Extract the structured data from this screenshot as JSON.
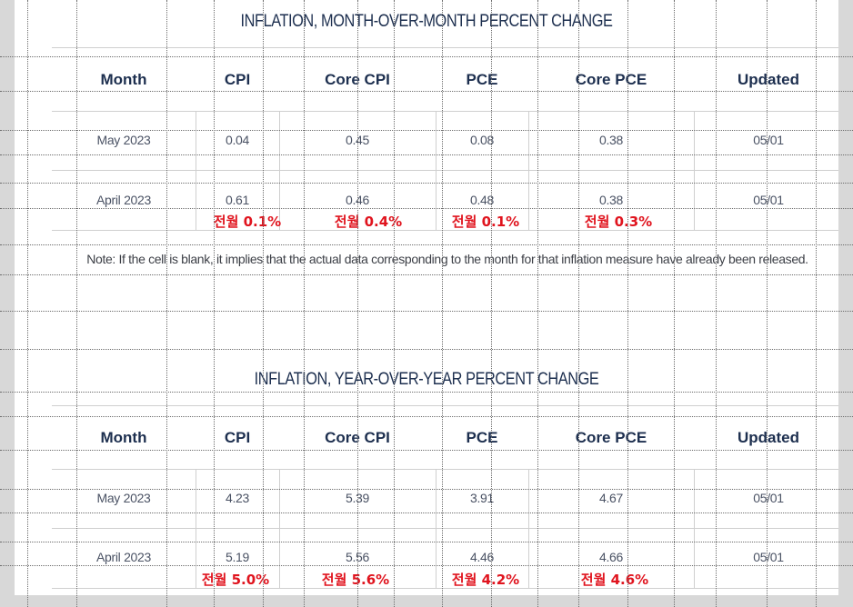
{
  "mom": {
    "title": "INFLATION, MONTH-OVER-MONTH PERCENT CHANGE",
    "headers": [
      "Month",
      "CPI",
      "Core CPI",
      "PCE",
      "Core PCE",
      "Updated"
    ],
    "rows": [
      [
        "May 2023",
        "0.04",
        "0.45",
        "0.08",
        "0.38",
        "05/01"
      ],
      [
        "April 2023",
        "0.61",
        "0.46",
        "0.48",
        "0.38",
        "05/01"
      ]
    ],
    "annotations": [
      "전월 0.1%",
      "전월 0.4%",
      "전월 0.1%",
      "전월 0.3%"
    ]
  },
  "note": "Note: If the cell is blank, it implies that the actual data corresponding to the month for that inflation measure have already been released.",
  "yoy": {
    "title": "INFLATION, YEAR-OVER-YEAR PERCENT CHANGE",
    "headers": [
      "Month",
      "CPI",
      "Core CPI",
      "PCE",
      "Core PCE",
      "Updated"
    ],
    "rows": [
      [
        "May 2023",
        "4.23",
        "5.39",
        "3.91",
        "4.67",
        "05/01"
      ],
      [
        "April 2023",
        "5.19",
        "5.56",
        "4.46",
        "4.66",
        "05/01"
      ]
    ],
    "annotations": [
      "전월 5.0%",
      "전월 5.6%",
      "전월 4.2%",
      "전월 4.6%"
    ]
  }
}
